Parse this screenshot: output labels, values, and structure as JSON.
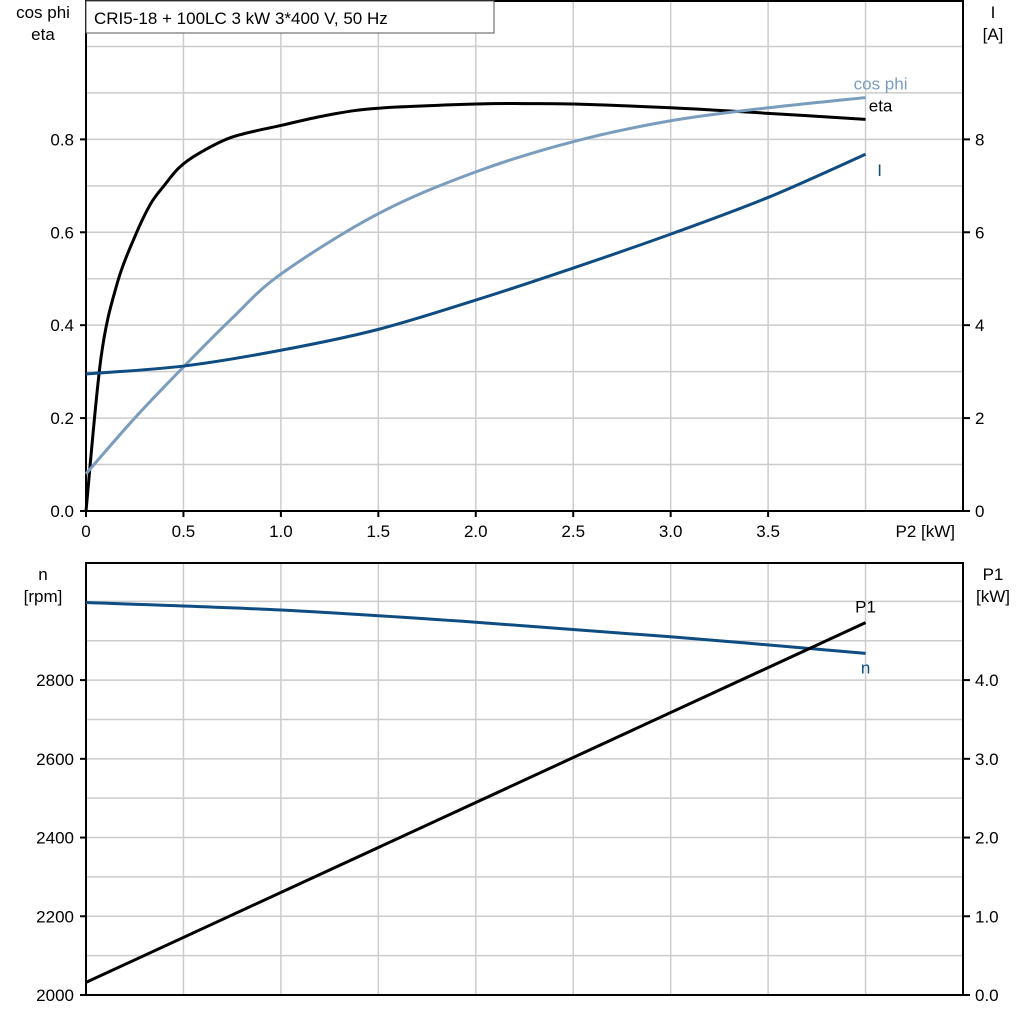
{
  "chart_data": [
    {
      "type": "line",
      "title": "CRI5-18 + 100LC   3 kW   3*400 V, 50 Hz",
      "xlabel": "P2 [kW]",
      "ylabel_left": [
        "cos phi",
        "eta"
      ],
      "ylabel_right": [
        "I",
        "[A]"
      ],
      "xlim": [
        0,
        4.5
      ],
      "ylim_left": [
        0,
        1.1
      ],
      "ylim_right": [
        0,
        11
      ],
      "x_ticks": [
        "0",
        "0.5",
        "1.0",
        "1.5",
        "2.0",
        "2.5",
        "3.0",
        "3.5"
      ],
      "y_left_ticks": [
        "0.0",
        "0.2",
        "0.4",
        "0.6",
        "0.8"
      ],
      "y_right_ticks": [
        "0",
        "2",
        "4",
        "6",
        "8"
      ],
      "grid": true,
      "series": [
        {
          "name": "eta",
          "axis": "left",
          "color": "#000000",
          "x": [
            0,
            0.077,
            0.16,
            0.25,
            0.33,
            0.4,
            0.48,
            0.58,
            0.75,
            1.0,
            1.25,
            1.5,
            2.0,
            2.25,
            2.5,
            3.0,
            3.5,
            4.0
          ],
          "y": [
            0,
            0.33,
            0.49,
            0.59,
            0.66,
            0.7,
            0.74,
            0.77,
            0.805,
            0.83,
            0.853,
            0.867,
            0.876,
            0.877,
            0.876,
            0.868,
            0.856,
            0.843
          ]
        },
        {
          "name": "cos phi",
          "axis": "left",
          "color": "#7a9cbd",
          "x": [
            0,
            0.25,
            0.5,
            0.75,
            1.0,
            1.5,
            2.0,
            2.5,
            3.0,
            3.5,
            4.0
          ],
          "y": [
            0.08,
            0.2,
            0.31,
            0.415,
            0.51,
            0.64,
            0.73,
            0.795,
            0.84,
            0.868,
            0.89
          ]
        },
        {
          "name": "I",
          "axis": "right",
          "color": "#0f4c81",
          "x": [
            0,
            0.5,
            1.0,
            1.5,
            2.0,
            2.5,
            3.0,
            3.5,
            4.0
          ],
          "y": [
            2.95,
            3.12,
            3.46,
            3.91,
            4.54,
            5.23,
            5.96,
            6.75,
            7.68
          ]
        }
      ]
    },
    {
      "type": "line",
      "xlim": [
        0,
        4.5
      ],
      "ylabel_left": [
        "n",
        "[rpm]"
      ],
      "ylabel_right": [
        "P1",
        "[kW]"
      ],
      "ylim_left": [
        2000,
        3100
      ],
      "ylim_right": [
        0,
        5.5
      ],
      "y_left_ticks": [
        "2000",
        "2200",
        "2400",
        "2600",
        "2800"
      ],
      "y_right_ticks": [
        "0.0",
        "1.0",
        "2.0",
        "3.0",
        "4.0"
      ],
      "grid": true,
      "series": [
        {
          "name": "n",
          "axis": "left",
          "color": "#0f4c81",
          "x": [
            0,
            1.0,
            2.0,
            3.0,
            4.0
          ],
          "y": [
            2997,
            2978,
            2947,
            2910,
            2868
          ]
        },
        {
          "name": "P1",
          "axis": "right",
          "color": "#000000",
          "x": [
            0,
            4.0
          ],
          "y": [
            0.16,
            4.73
          ]
        }
      ]
    }
  ]
}
